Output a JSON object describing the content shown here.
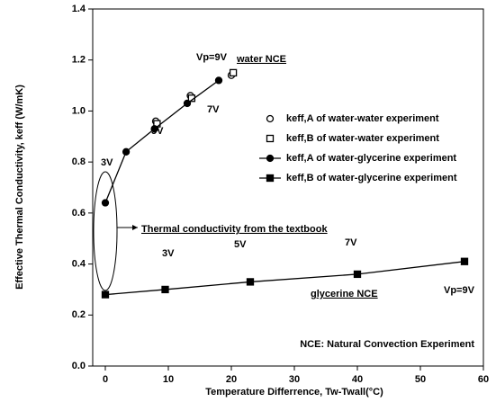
{
  "chart_data": {
    "type": "scatter",
    "xlabel": "Temperature Differrence, Tw-Twall(°C)",
    "ylabel": "Effective Thermal Conductivity, keff (W/mK)",
    "xlim": [
      -2,
      60
    ],
    "ylim": [
      0,
      1.4
    ],
    "xticks": [
      0,
      10,
      20,
      30,
      40,
      50,
      60
    ],
    "yticks": [
      {
        "value": 0,
        "label": "0.0"
      },
      0.2,
      0.4,
      0.6,
      0.8,
      {
        "value": 1,
        "label": "1.0"
      },
      1.2,
      1.4
    ],
    "color": "#000000",
    "series": [
      {
        "name": "keff,A of water-water experiment",
        "marker": "circle",
        "filled": false,
        "line": false,
        "x": [
          8,
          13.5,
          20
        ],
        "values": [
          0.96,
          1.06,
          1.14
        ]
      },
      {
        "name": "keff,B of water-water experiment",
        "marker": "square",
        "filled": false,
        "line": false,
        "x": [
          8.2,
          13.7,
          20.3
        ],
        "values": [
          0.95,
          1.05,
          1.15
        ]
      },
      {
        "name": "keff,A of water-glycerine experiment",
        "marker": "circle",
        "filled": true,
        "line": true,
        "x": [
          0,
          3.3,
          7.8,
          13,
          18
        ],
        "values": [
          0.64,
          0.84,
          0.93,
          1.03,
          1.12
        ]
      },
      {
        "name": "keff,B of water-glycerine experiment",
        "marker": "square",
        "filled": true,
        "line": true,
        "x": [
          0,
          9.5,
          23,
          40,
          57
        ],
        "values": [
          0.28,
          0.3,
          0.33,
          0.36,
          0.41
        ]
      }
    ],
    "annotations": [
      "Vp=9V",
      "water NCE",
      "3V",
      "5V",
      "7V",
      "Thermal conductivity  from the textbook",
      "3V",
      "5V",
      "7V",
      "glycerine NCE",
      "Vp=9V",
      "NCE: Natural Convection Experiment"
    ]
  }
}
